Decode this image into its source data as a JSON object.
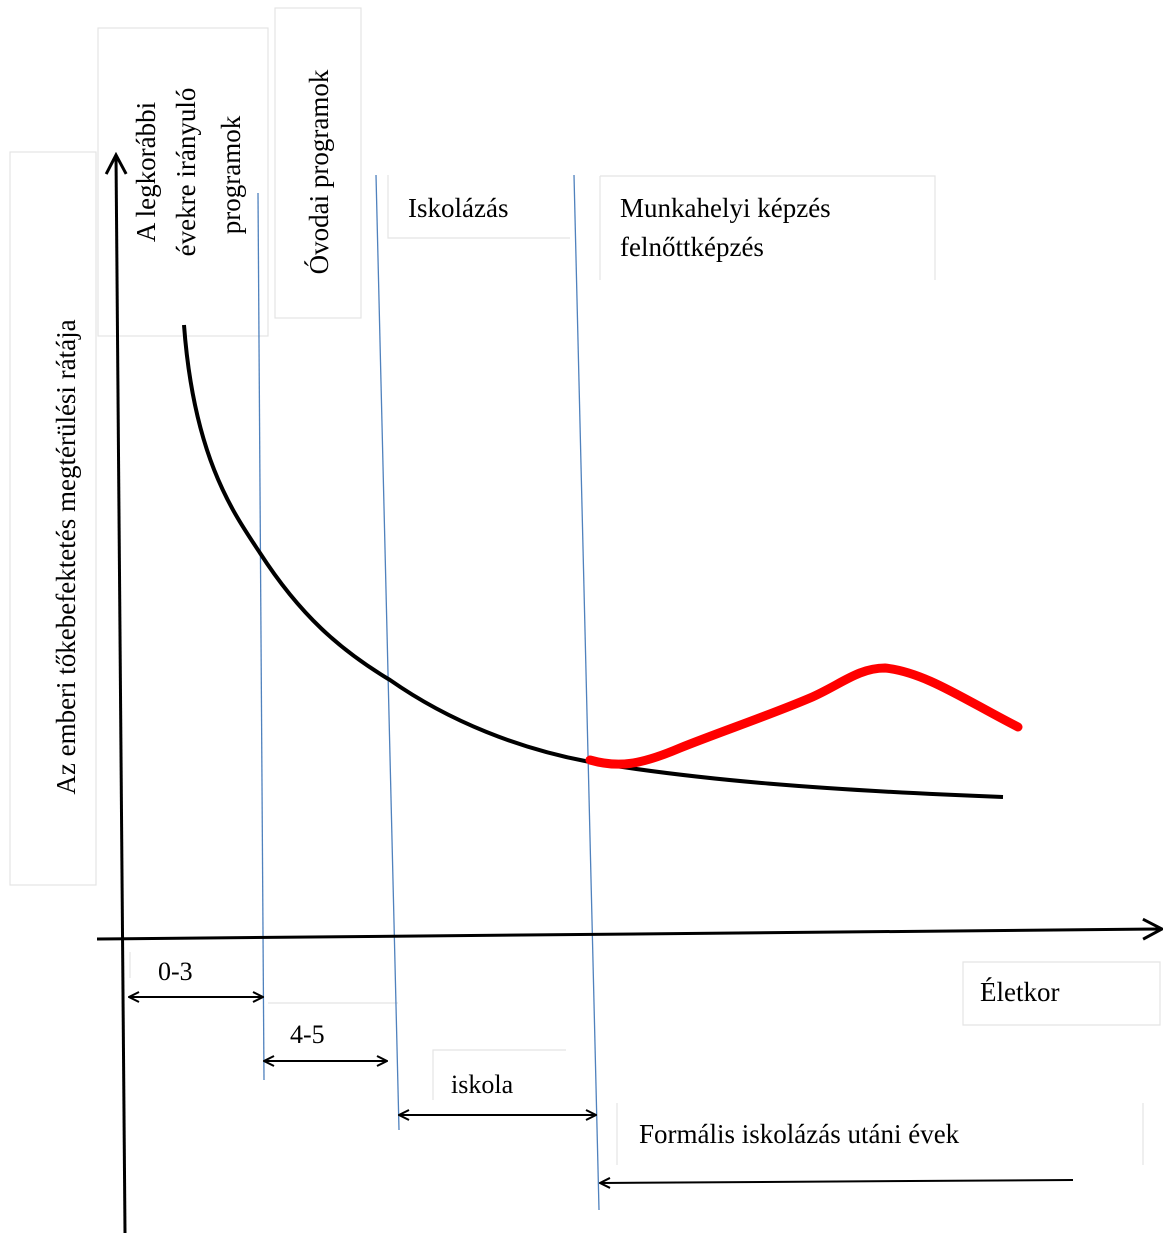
{
  "y_axis_label": "Az emberi tőkebefektetés megtérülési rátája",
  "x_axis_label": "Életkor",
  "phases": {
    "early_years_line1": "A legkorábbi",
    "early_years_line2": "évekre irányuló",
    "early_years_line3": "programok",
    "preschool": "Óvodai programok",
    "schooling": "Iskolázás",
    "workplace_line1": "Munkahelyi képzés",
    "workplace_line2": "felnőttképzés"
  },
  "age_ranges": {
    "r1": "0-3",
    "r2": "4-5",
    "r3": "iskola",
    "r4": "Formális iskolázás utáni évek"
  },
  "colors": {
    "main_curve": "#000000",
    "workplace_curve": "#ff0000",
    "dividers": "#4f81bd"
  }
}
